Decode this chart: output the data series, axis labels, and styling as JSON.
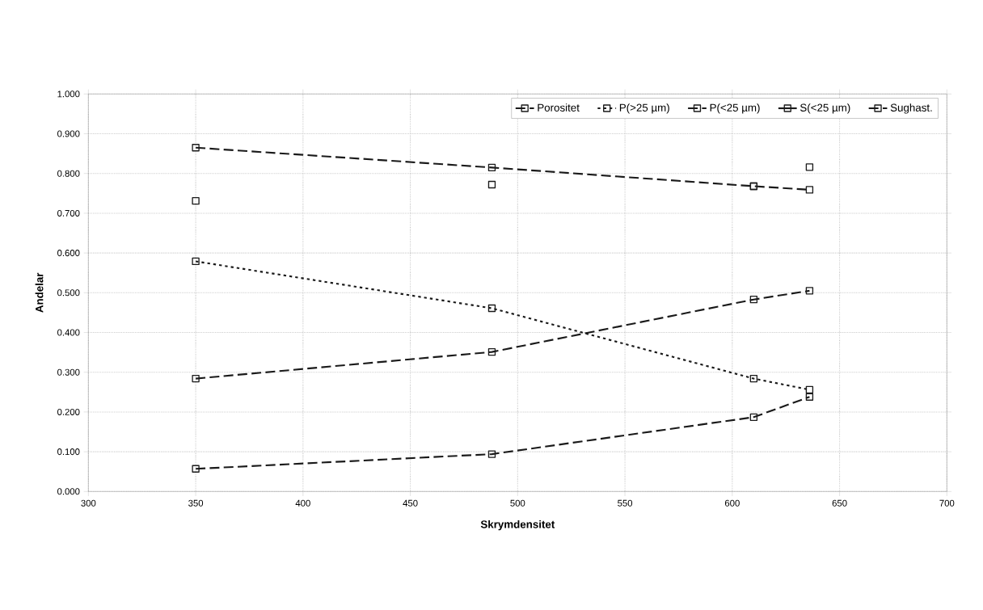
{
  "chart_data": {
    "type": "line",
    "xlabel": "Skrymdensitet",
    "ylabel": "Andelar",
    "x": [
      350,
      488,
      610,
      636
    ],
    "series": [
      {
        "name": "Porositet",
        "color": "#1a1a1a",
        "line_style": "dashed",
        "values": [
          0.865,
          0.815,
          0.768,
          0.759
        ]
      },
      {
        "name": "P(>25 µm)",
        "color": "#1a1a1a",
        "line_style": "dotted",
        "values": [
          0.579,
          0.461,
          0.284,
          0.256
        ]
      },
      {
        "name": "P(<25 µm)",
        "color": "#1a1a1a",
        "line_style": "dashed",
        "values": [
          0.284,
          0.351,
          0.483,
          0.505
        ]
      },
      {
        "name": "S(<25 µm)",
        "type": "scatter",
        "color": "#1a1a1a",
        "values": [
          0.731,
          0.772,
          0.768,
          0.816
        ]
      },
      {
        "name": "Sughast.",
        "color": "#1a1a1a",
        "line_style": "dashed",
        "values": [
          0.057,
          0.094,
          0.187,
          0.238
        ]
      }
    ],
    "xlim": [
      300,
      700
    ],
    "xticks": [
      300,
      350,
      400,
      450,
      500,
      550,
      600,
      650,
      700
    ],
    "ylim": [
      0,
      1
    ],
    "yticks": [
      {
        "value": 0,
        "label": "0.000"
      },
      {
        "value": 0.1,
        "label": "0.100"
      },
      {
        "value": 0.2,
        "label": "0.200"
      },
      {
        "value": 0.3,
        "label": "0.300"
      },
      {
        "value": 0.4,
        "label": "0.400"
      },
      {
        "value": 0.5,
        "label": "0.500"
      },
      {
        "value": 0.6,
        "label": "0.600"
      },
      {
        "value": 0.7,
        "label": "0.700"
      },
      {
        "value": 0.8,
        "label": "0.800"
      },
      {
        "value": 0.9,
        "label": "0.900"
      },
      {
        "value": 1,
        "label": "1.000"
      }
    ],
    "grid": true,
    "legend": "top right",
    "marker": "square"
  }
}
